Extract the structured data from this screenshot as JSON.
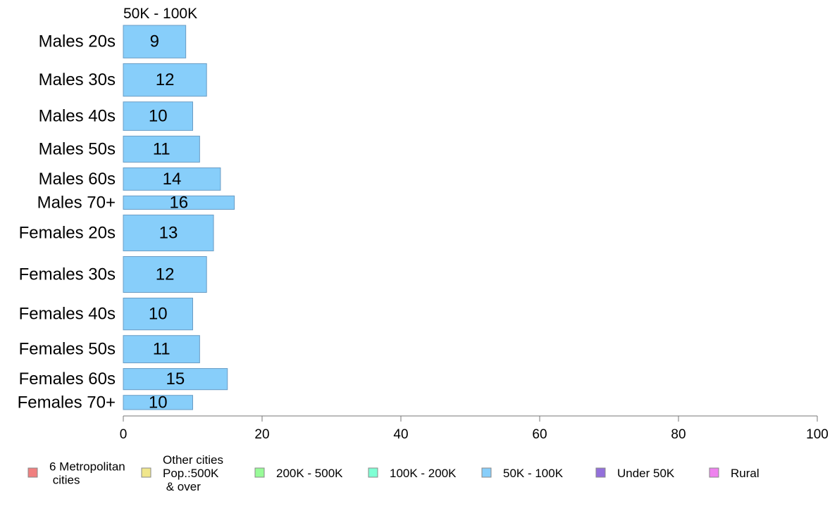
{
  "chart_data": {
    "type": "bar",
    "orientation": "horizontal",
    "title": "50K - 100K",
    "categories": [
      "Males 20s",
      "Males 30s",
      "Males 40s",
      "Males 50s",
      "Males 60s",
      "Males 70+",
      "Females 20s",
      "Females 30s",
      "Females 40s",
      "Females 50s",
      "Females 60s",
      "Females 70+"
    ],
    "series": [
      {
        "name": "50K - 100K",
        "color": "#87CEFA",
        "values": [
          9,
          12,
          10,
          11,
          14,
          16,
          13,
          12,
          10,
          11,
          15,
          10
        ]
      }
    ],
    "category_weights": [
      0.8,
      0.8,
      0.7,
      0.64,
      0.55,
      0.33,
      0.88,
      0.88,
      0.78,
      0.67,
      0.52,
      0.35
    ],
    "xlim": [
      0,
      100
    ],
    "xticks": [
      0,
      20,
      40,
      60,
      80,
      100
    ],
    "xlabel": "",
    "ylabel": "",
    "grid": false,
    "legend_position": "bottom",
    "legend": [
      {
        "label": "6 Metropolitan\n cities",
        "color": "#F08080"
      },
      {
        "label": "Other cities\nPop.:500K\n & over",
        "color": "#F0E68C"
      },
      {
        "label": "200K - 500K",
        "color": "#98FB98"
      },
      {
        "label": "100K - 200K",
        "color": "#7FFFD4"
      },
      {
        "label": "50K - 100K",
        "color": "#87CEFA"
      },
      {
        "label": "Under 50K",
        "color": "#9370DB"
      },
      {
        "label": "Rural",
        "color": "#EE82EE"
      }
    ]
  }
}
